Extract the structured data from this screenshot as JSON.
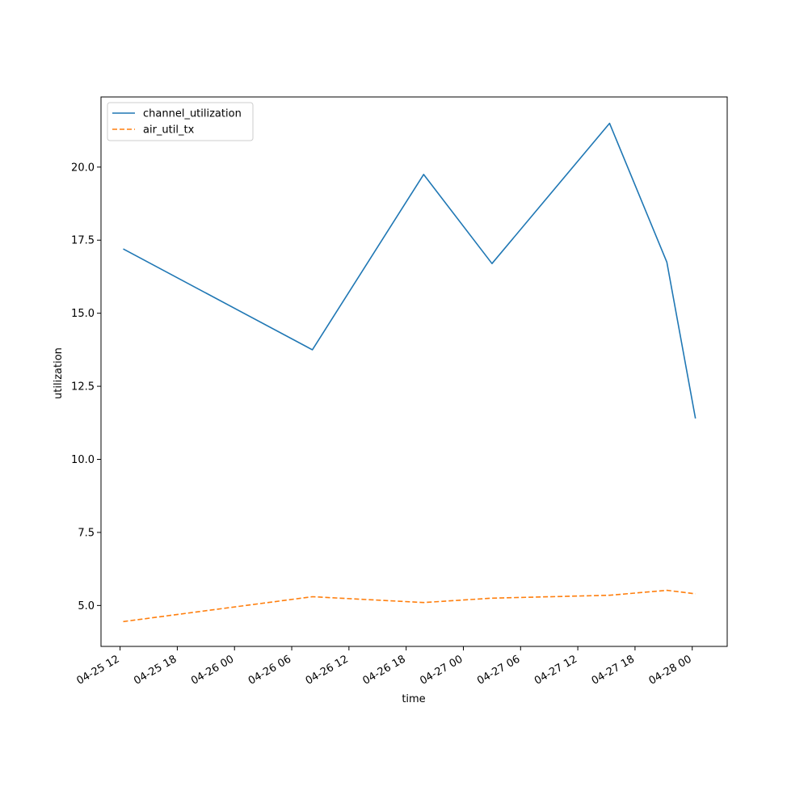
{
  "chart_data": {
    "type": "line",
    "title": "",
    "xlabel": "time",
    "ylabel": "utilization",
    "x_tick_labels": [
      "04-25 12",
      "04-25 18",
      "04-26 00",
      "04-26 06",
      "04-26 12",
      "04-26 18",
      "04-27 00",
      "04-27 06",
      "04-27 12",
      "04-27 18",
      "04-28 00"
    ],
    "x_ticks": [
      "2024-04-25T12:00",
      "2024-04-25T18:00",
      "2024-04-26T00:00",
      "2024-04-26T06:00",
      "2024-04-26T12:00",
      "2024-04-26T18:00",
      "2024-04-27T00:00",
      "2024-04-27T06:00",
      "2024-04-27T12:00",
      "2024-04-27T18:00",
      "2024-04-28T00:00"
    ],
    "xlim": [
      "2024-04-25T10:00",
      "2024-04-28T03:40"
    ],
    "y_tick_labels": [
      "5.0",
      "7.5",
      "10.0",
      "12.5",
      "15.0",
      "17.5",
      "20.0"
    ],
    "y_ticks": [
      5.0,
      7.5,
      10.0,
      12.5,
      15.0,
      17.5,
      20.0
    ],
    "ylim": [
      3.6,
      22.4
    ],
    "x": [
      "2024-04-25T12:20",
      "2024-04-26T08:10",
      "2024-04-26T19:50",
      "2024-04-27T03:00",
      "2024-04-27T15:20",
      "2024-04-27T21:20",
      "2024-04-28T00:20"
    ],
    "series": [
      {
        "name": "channel_utilization",
        "values": [
          17.2,
          13.75,
          19.75,
          16.7,
          21.5,
          16.75,
          11.4
        ],
        "color": "#1f77b4",
        "style": "solid"
      },
      {
        "name": "air_util_tx",
        "values": [
          4.45,
          5.3,
          5.1,
          5.25,
          5.35,
          5.52,
          5.4
        ],
        "color": "#ff7f0e",
        "style": "dashed"
      }
    ],
    "grid": false,
    "legend_position": "top-left"
  }
}
